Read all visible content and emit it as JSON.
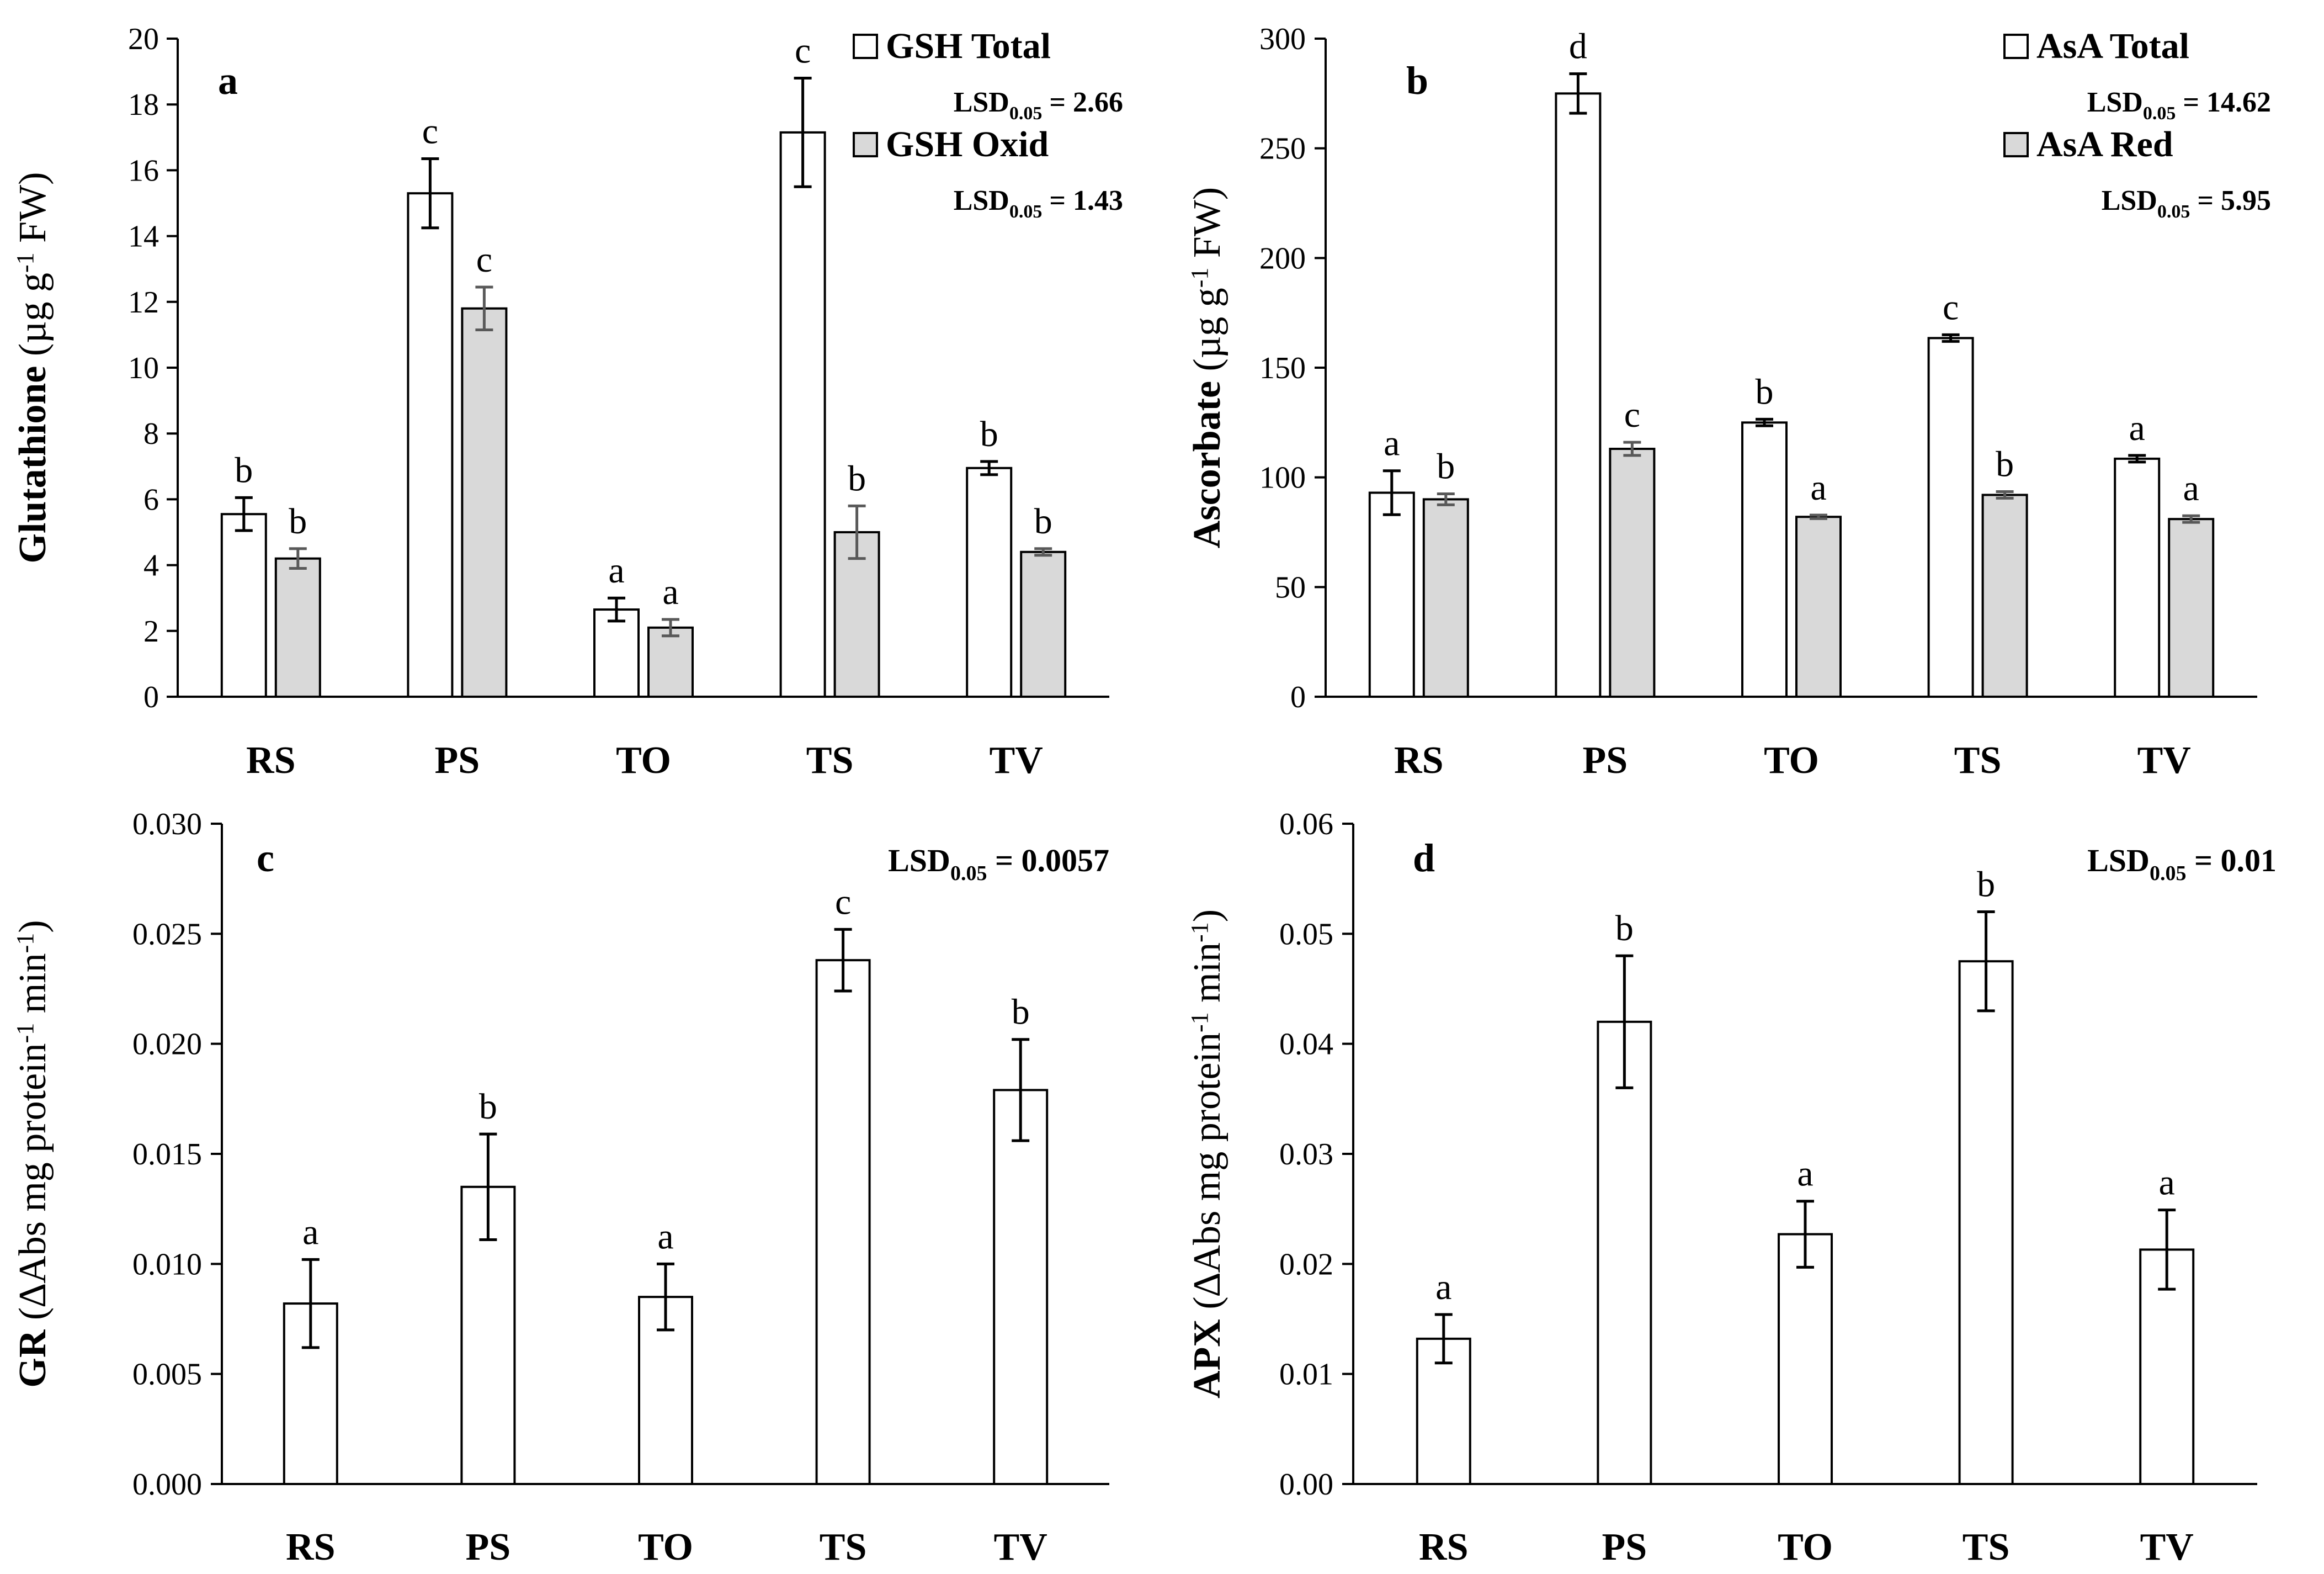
{
  "figure": {
    "panels": [
      "a",
      "b",
      "c",
      "d"
    ]
  },
  "chart_data": [
    {
      "type": "bar",
      "panel_label": "a",
      "ylabel_main": "Glutathione",
      "ylabel_unit": "(µg g",
      "ylabel_unit_sup": "-1",
      "ylabel_unit_tail": " FW)",
      "ylim": [
        0,
        20
      ],
      "yticks": [
        "0",
        "2",
        "4",
        "6",
        "8",
        "10",
        "12",
        "14",
        "16",
        "18",
        "20"
      ],
      "ytick_values": [
        0,
        2,
        4,
        6,
        8,
        10,
        12,
        14,
        16,
        18,
        20
      ],
      "categories": [
        "RS",
        "PS",
        "TO",
        "TS",
        "TV"
      ],
      "series": [
        {
          "name": "GSH Total",
          "color": "#ffffff",
          "err_color": "#000000",
          "values": [
            5.55,
            15.3,
            2.65,
            17.15,
            6.95
          ],
          "errors": [
            0.5,
            1.05,
            0.35,
            1.65,
            0.2
          ],
          "labels": [
            "b",
            "c",
            "a",
            "c",
            "b"
          ]
        },
        {
          "name": "GSH Oxid",
          "color": "#d9d9d9",
          "err_color": "#595959",
          "values": [
            4.2,
            11.8,
            2.1,
            5.0,
            4.4
          ],
          "errors": [
            0.3,
            0.65,
            0.25,
            0.8,
            0.1
          ],
          "labels": [
            "b",
            "c",
            "a",
            "b",
            "b"
          ]
        }
      ],
      "legend": [
        {
          "name": "GSH Total",
          "lsd_prefix": "LSD",
          "lsd_sub": "0.05",
          "lsd_value": " = 2.66"
        },
        {
          "name": "GSH Oxid",
          "lsd_prefix": "LSD",
          "lsd_sub": "0.05",
          "lsd_value": " = 1.43"
        }
      ],
      "legend_position": "top-right"
    },
    {
      "type": "bar",
      "panel_label": "b",
      "ylabel_main": "Ascorbate",
      "ylabel_unit": "(µg g",
      "ylabel_unit_sup": "-1",
      "ylabel_unit_tail": " FW)",
      "ylim": [
        0,
        300
      ],
      "yticks": [
        "0",
        "50",
        "100",
        "150",
        "200",
        "250",
        "300"
      ],
      "ytick_values": [
        0,
        50,
        100,
        150,
        200,
        250,
        300
      ],
      "categories": [
        "RS",
        "PS",
        "TO",
        "TS",
        "TV"
      ],
      "series": [
        {
          "name": "AsA Total",
          "color": "#ffffff",
          "err_color": "#000000",
          "values": [
            93,
            275,
            125,
            163.5,
            108.5
          ],
          "errors": [
            10,
            9,
            1.5,
            1.5,
            1.5
          ],
          "labels": [
            "a",
            "d",
            "b",
            "c",
            "a"
          ]
        },
        {
          "name": "AsA Red",
          "color": "#d9d9d9",
          "err_color": "#595959",
          "values": [
            90,
            113,
            82,
            92,
            81
          ],
          "errors": [
            2.5,
            3,
            0.8,
            1.5,
            1.5
          ],
          "labels": [
            "b",
            "c",
            "a",
            "b",
            "a"
          ]
        }
      ],
      "legend": [
        {
          "name": "AsA Total",
          "lsd_prefix": "LSD",
          "lsd_sub": "0.05",
          "lsd_value": " = 14.62"
        },
        {
          "name": "AsA Red",
          "lsd_prefix": "LSD",
          "lsd_sub": "0.05",
          "lsd_value": " = 5.95"
        }
      ],
      "legend_position": "top-right"
    },
    {
      "type": "bar",
      "panel_label": "c",
      "ylabel_main": "GR",
      "ylabel_unit": "(∆Abs mg protein",
      "ylabel_unit_sup": "-1",
      "ylabel_unit_tail": " min",
      "ylabel_unit_sup2": "-1",
      "ylabel_unit_end": ")",
      "ylim": [
        0,
        0.03
      ],
      "yticks": [
        "0.000",
        "0.005",
        "0.010",
        "0.015",
        "0.020",
        "0.025",
        "0.030"
      ],
      "ytick_values": [
        0,
        0.005,
        0.01,
        0.015,
        0.02,
        0.025,
        0.03
      ],
      "categories": [
        "RS",
        "PS",
        "TO",
        "TS",
        "TV"
      ],
      "series": [
        {
          "color": "#ffffff",
          "err_color": "#000000",
          "values": [
            0.0082,
            0.0135,
            0.0085,
            0.0238,
            0.0179
          ],
          "errors": [
            0.002,
            0.0024,
            0.0015,
            0.0014,
            0.0023
          ],
          "labels": [
            "a",
            "b",
            "a",
            "c",
            "b"
          ]
        }
      ],
      "lsd": {
        "prefix": "LSD",
        "sub": "0.05",
        "value": " = 0.0057"
      }
    },
    {
      "type": "bar",
      "panel_label": "d",
      "ylabel_main": "APX",
      "ylabel_unit": "(∆Abs mg protein",
      "ylabel_unit_sup": "-1",
      "ylabel_unit_tail": " min",
      "ylabel_unit_sup2": "-1",
      "ylabel_unit_end": ")",
      "ylim": [
        0,
        0.06
      ],
      "yticks": [
        "0.00",
        "0.01",
        "0.02",
        "0.03",
        "0.04",
        "0.05",
        "0.06"
      ],
      "ytick_values": [
        0,
        0.01,
        0.02,
        0.03,
        0.04,
        0.05,
        0.06
      ],
      "categories": [
        "RS",
        "PS",
        "TO",
        "TS",
        "TV"
      ],
      "series": [
        {
          "color": "#ffffff",
          "err_color": "#000000",
          "values": [
            0.0132,
            0.042,
            0.0227,
            0.0475,
            0.0213
          ],
          "errors": [
            0.0022,
            0.006,
            0.003,
            0.0045,
            0.0036
          ],
          "labels": [
            "a",
            "b",
            "a",
            "b",
            "a"
          ]
        }
      ],
      "lsd": {
        "prefix": "LSD",
        "sub": "0.05",
        "value": " = 0.01"
      }
    }
  ]
}
